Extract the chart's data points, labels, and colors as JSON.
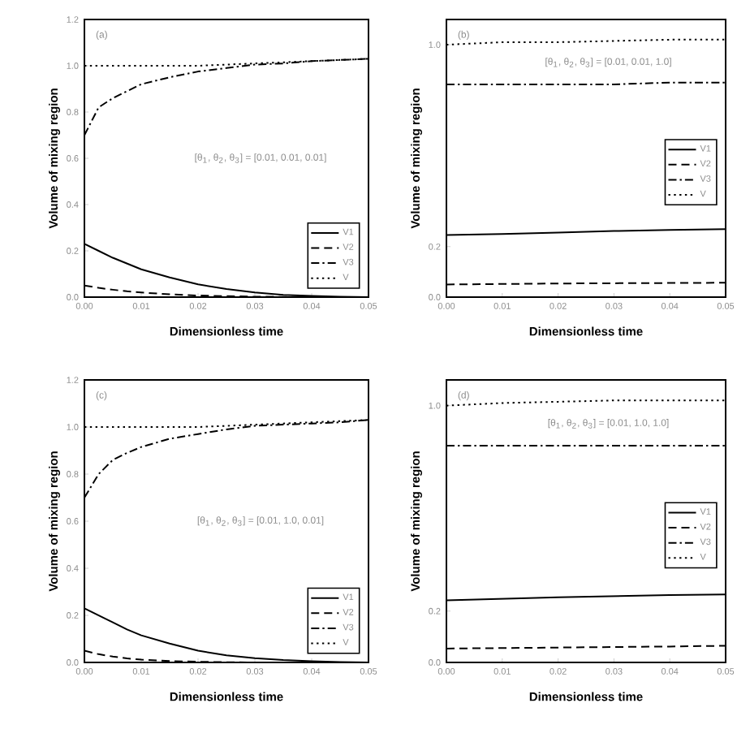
{
  "chart_data": [
    {
      "type": "line",
      "title": "(a)",
      "xlabel": "Dimensionless time",
      "ylabel": "Volume of mixing region",
      "annotations": [
        "[θ$_{1}$, θ$_{2}$, θ$_{3}$] = [0.01, 0.01, 0.01]"
      ],
      "x": [
        0,
        0.0025,
        0.005,
        0.0075,
        0.01,
        0.015,
        0.02,
        0.025,
        0.03,
        0.035,
        0.04,
        0.045,
        0.05
      ],
      "xlim": [
        0,
        0.05
      ],
      "xticks": [
        {
          "value": 0,
          "label": "0.00"
        },
        {
          "value": 0.01,
          "label": "0.01"
        },
        {
          "value": 0.02,
          "label": "0.02"
        },
        {
          "value": 0.03,
          "label": "0.03"
        },
        {
          "value": 0.04,
          "label": "0.04"
        },
        {
          "value": 0.05,
          "label": "0.05"
        }
      ],
      "ylim": [
        0,
        1.2
      ],
      "yticks": [
        {
          "value": 0,
          "label": "0.0"
        },
        {
          "value": 0.2,
          "label": "0.2"
        },
        {
          "value": 0.4,
          "label": "0.4"
        },
        {
          "value": 0.6,
          "label": "0.6"
        },
        {
          "value": 0.8,
          "label": "0.8"
        },
        {
          "value": 1.0,
          "label": "1.0"
        },
        {
          "value": 1.2,
          "label": "1.2"
        }
      ],
      "legend": "bottom right",
      "series": [
        {
          "name": "V1",
          "color": "#000000",
          "line_style": "solid",
          "values": [
            0.23,
            0.2,
            0.17,
            0.145,
            0.12,
            0.085,
            0.055,
            0.035,
            0.02,
            0.01,
            0.005,
            0.002,
            0
          ]
        },
        {
          "name": "V2",
          "color": "#000000",
          "line_style": "dashed",
          "values": [
            0.05,
            0.04,
            0.032,
            0.025,
            0.02,
            0.012,
            0.007,
            0.004,
            0.002,
            0.001,
            0,
            0,
            0
          ]
        },
        {
          "name": "V3",
          "color": "#000000",
          "line_style": "dashdot",
          "values": [
            0.7,
            0.82,
            0.86,
            0.89,
            0.92,
            0.95,
            0.975,
            0.99,
            1.005,
            1.01,
            1.02,
            1.025,
            1.03
          ]
        },
        {
          "name": "V",
          "color": "#000000",
          "line_style": "dotted",
          "values": [
            1.0,
            1.0,
            1.0,
            1.0,
            1.0,
            1.0,
            1.0,
            1.005,
            1.01,
            1.015,
            1.02,
            1.025,
            1.03
          ]
        }
      ]
    },
    {
      "type": "line",
      "title": "(b)",
      "xlabel": "Dimensionless time",
      "ylabel": "Volume of mixing region",
      "annotations": [
        "[θ$_{1}$, θ$_{2}$, θ$_{3}$] = [0.01, 0.01, 1.0]"
      ],
      "x": [
        0,
        0.01,
        0.02,
        0.03,
        0.04,
        0.05
      ],
      "xlim": [
        0,
        0.05
      ],
      "xticks": [
        {
          "value": 0,
          "label": "0.00"
        },
        {
          "value": 0.01,
          "label": "0.01"
        },
        {
          "value": 0.02,
          "label": "0.02"
        },
        {
          "value": 0.03,
          "label": "0.03"
        },
        {
          "value": 0.04,
          "label": "0.04"
        },
        {
          "value": 0.05,
          "label": "0.05"
        }
      ],
      "ylim": [
        0,
        1.1
      ],
      "yticks": [
        {
          "value": 0,
          "label": "0.0"
        },
        {
          "value": 0.2,
          "label": "0.2"
        },
        {
          "value": 1.0,
          "label": "1.0"
        }
      ],
      "legend": "right",
      "series": [
        {
          "name": "V1",
          "color": "#000000",
          "line_style": "solid",
          "values": [
            0.246,
            0.25,
            0.256,
            0.262,
            0.266,
            0.269
          ]
        },
        {
          "name": "V2",
          "color": "#000000",
          "line_style": "dashed",
          "values": [
            0.05,
            0.052,
            0.054,
            0.055,
            0.056,
            0.057
          ]
        },
        {
          "name": "V3",
          "color": "#000000",
          "line_style": "dashdot",
          "values": [
            0.843,
            0.843,
            0.843,
            0.843,
            0.85,
            0.85
          ]
        },
        {
          "name": "V",
          "color": "#000000",
          "line_style": "dotted",
          "values": [
            1.0,
            1.01,
            1.01,
            1.015,
            1.02,
            1.02
          ]
        }
      ]
    },
    {
      "type": "line",
      "title": "(c)",
      "xlabel": "Dimensionless time",
      "ylabel": "Volume of mixing region",
      "annotations": [
        "[θ$_{1}$, θ$_{2}$, θ$_{3}$] = [0.01, 1.0, 0.01]"
      ],
      "x": [
        0,
        0.0025,
        0.005,
        0.0075,
        0.01,
        0.015,
        0.02,
        0.025,
        0.03,
        0.035,
        0.04,
        0.045,
        0.05
      ],
      "xlim": [
        0,
        0.05
      ],
      "xticks": [
        {
          "value": 0,
          "label": "0.00"
        },
        {
          "value": 0.01,
          "label": "0.01"
        },
        {
          "value": 0.02,
          "label": "0.02"
        },
        {
          "value": 0.03,
          "label": "0.03"
        },
        {
          "value": 0.04,
          "label": "0.04"
        },
        {
          "value": 0.05,
          "label": "0.05"
        }
      ],
      "ylim": [
        0,
        1.2
      ],
      "yticks": [
        {
          "value": 0,
          "label": "0.0"
        },
        {
          "value": 0.2,
          "label": "0.2"
        },
        {
          "value": 0.4,
          "label": "0.4"
        },
        {
          "value": 0.6,
          "label": "0.6"
        },
        {
          "value": 0.8,
          "label": "0.8"
        },
        {
          "value": 1.0,
          "label": "1.0"
        },
        {
          "value": 1.2,
          "label": "1.2"
        }
      ],
      "legend": "bottom right",
      "series": [
        {
          "name": "V1",
          "color": "#000000",
          "line_style": "solid",
          "values": [
            0.23,
            0.2,
            0.17,
            0.14,
            0.115,
            0.08,
            0.05,
            0.03,
            0.018,
            0.01,
            0.005,
            0.002,
            0
          ]
        },
        {
          "name": "V2",
          "color": "#000000",
          "line_style": "dashed",
          "values": [
            0.05,
            0.035,
            0.025,
            0.017,
            0.012,
            0.006,
            0.003,
            0.001,
            0,
            0,
            0,
            0,
            0
          ]
        },
        {
          "name": "V3",
          "color": "#000000",
          "line_style": "dashdot",
          "values": [
            0.7,
            0.8,
            0.86,
            0.89,
            0.915,
            0.95,
            0.97,
            0.99,
            1.005,
            1.01,
            1.015,
            1.02,
            1.03
          ]
        },
        {
          "name": "V",
          "color": "#000000",
          "line_style": "dotted",
          "values": [
            1.0,
            1.0,
            1.0,
            1.0,
            1.0,
            1.0,
            1.0,
            1.005,
            1.01,
            1.015,
            1.02,
            1.025,
            1.03
          ]
        }
      ]
    },
    {
      "type": "line",
      "title": "(d)",
      "xlabel": "Dimensionless time",
      "ylabel": "Volume of mixing region",
      "annotations": [
        "[θ$_{1}$, θ$_{2}$, θ$_{3}$] = [0.01, 1.0, 1.0]"
      ],
      "x": [
        0,
        0.01,
        0.02,
        0.03,
        0.04,
        0.05
      ],
      "xlim": [
        0,
        0.05
      ],
      "xticks": [
        {
          "value": 0,
          "label": "0.00"
        },
        {
          "value": 0.01,
          "label": "0.01"
        },
        {
          "value": 0.02,
          "label": "0.02"
        },
        {
          "value": 0.03,
          "label": "0.03"
        },
        {
          "value": 0.04,
          "label": "0.04"
        },
        {
          "value": 0.05,
          "label": "0.05"
        }
      ],
      "ylim": [
        0,
        1.1
      ],
      "yticks": [
        {
          "value": 0,
          "label": "0.0"
        },
        {
          "value": 0.2,
          "label": "0.2"
        },
        {
          "value": 1.0,
          "label": "1.0"
        }
      ],
      "legend": "right",
      "series": [
        {
          "name": "V1",
          "color": "#000000",
          "line_style": "solid",
          "values": [
            0.242,
            0.248,
            0.254,
            0.258,
            0.262,
            0.265
          ]
        },
        {
          "name": "V2",
          "color": "#000000",
          "line_style": "dashed",
          "values": [
            0.054,
            0.056,
            0.058,
            0.06,
            0.062,
            0.065
          ]
        },
        {
          "name": "V3",
          "color": "#000000",
          "line_style": "dashdot",
          "values": [
            0.844,
            0.844,
            0.844,
            0.844,
            0.844,
            0.844
          ]
        },
        {
          "name": "V",
          "color": "#000000",
          "line_style": "dotted",
          "values": [
            1.0,
            1.01,
            1.015,
            1.02,
            1.02,
            1.02
          ]
        }
      ]
    }
  ]
}
